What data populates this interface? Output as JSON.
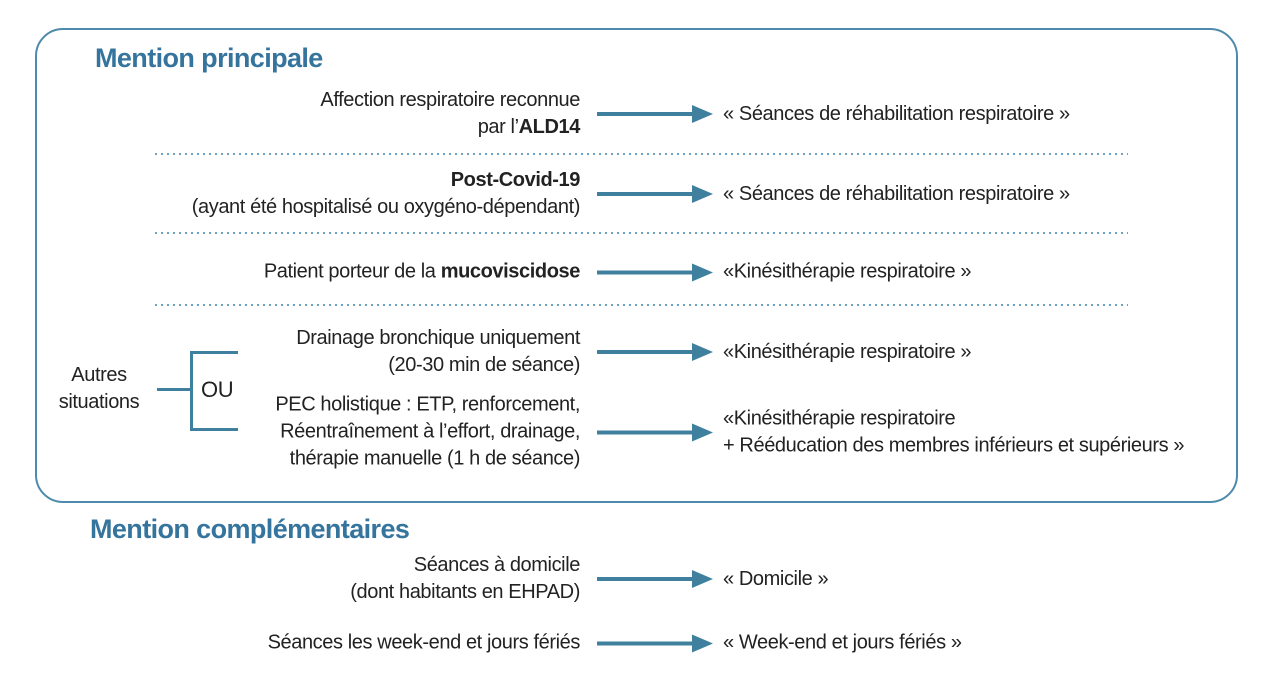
{
  "colors": {
    "accent_title": "#35749d",
    "arrow_line": "#40809f",
    "box_border": "#4e8aab",
    "dotted_separator": "#6ea2c2",
    "body_text": "#222222"
  },
  "main_section": {
    "title": "Mention principale",
    "rows": [
      {
        "condition_lines": [
          [
            {
              "t": "Affection respiratoire reconnue"
            }
          ],
          [
            {
              "t": "par l’"
            },
            {
              "t": "ALD14",
              "b": true
            }
          ]
        ],
        "mention_lines": [
          "« Séances de réhabilitation respiratoire »"
        ]
      },
      {
        "condition_lines": [
          [
            {
              "t": "Post-Covid-19",
              "b": true
            }
          ],
          [
            {
              "t": "(ayant été hospitalisé ou oxygéno-dépendant)"
            }
          ]
        ],
        "mention_lines": [
          "« Séances de réhabilitation respiratoire »"
        ]
      },
      {
        "condition_lines": [
          [
            {
              "t": "Patient porteur de la "
            },
            {
              "t": "mucoviscidose",
              "b": true
            }
          ]
        ],
        "mention_lines": [
          "«Kinésithérapie respiratoire »"
        ]
      },
      {
        "condition_lines": [
          [
            {
              "t": "Drainage bronchique uniquement"
            }
          ],
          [
            {
              "t": "(20-30 min de séance)"
            }
          ]
        ],
        "mention_lines": [
          "«Kinésithérapie respiratoire »"
        ]
      },
      {
        "condition_lines": [
          [
            {
              "t": "PEC holistique : ETP, renforcement,"
            }
          ],
          [
            {
              "t": "Réentraînement à l’effort, drainage,"
            }
          ],
          [
            {
              "t": "thérapie manuelle (1 h de séance)"
            }
          ]
        ],
        "mention_lines": [
          "«Kinésithérapie respiratoire",
          "+ Rééducation des membres inférieurs et supérieurs »"
        ]
      }
    ]
  },
  "other_situations": {
    "label_lines": [
      "Autres",
      "situations"
    ],
    "operator": "OU"
  },
  "secondary_section": {
    "title": "Mention complémentaires",
    "rows": [
      {
        "condition_lines": [
          [
            {
              "t": "Séances à domicile"
            }
          ],
          [
            {
              "t": "(dont habitants en EHPAD)"
            }
          ]
        ],
        "mention_lines": [
          "« Domicile »"
        ]
      },
      {
        "condition_lines": [
          [
            {
              "t": "Séances les week-end et jours fériés"
            }
          ]
        ],
        "mention_lines": [
          "« Week-end et jours fériés »"
        ]
      }
    ]
  }
}
